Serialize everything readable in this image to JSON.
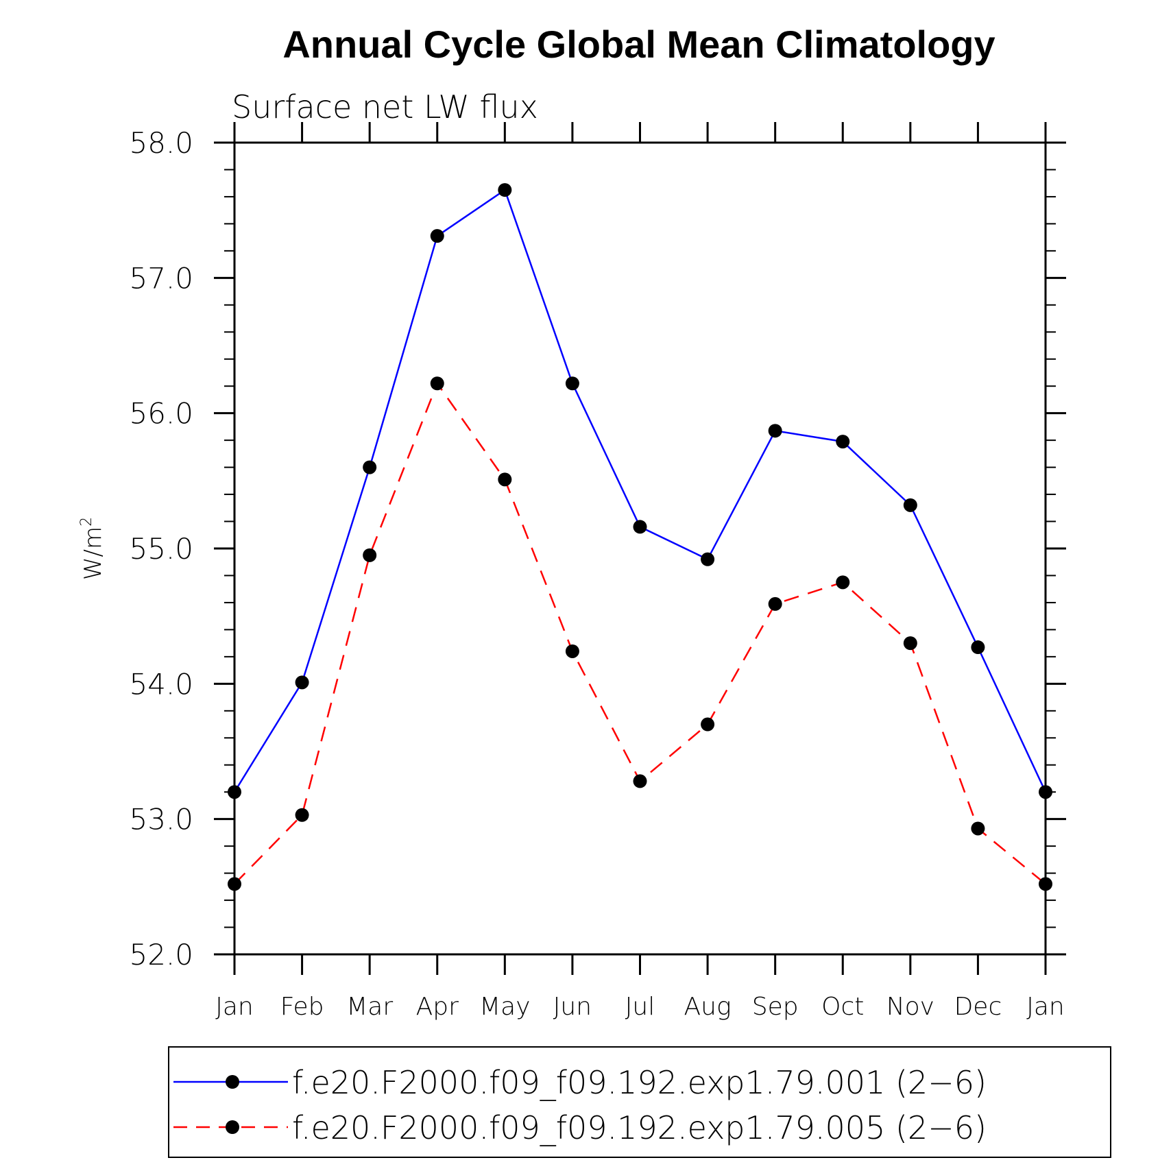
{
  "chart_data": {
    "type": "line",
    "title": "Annual Cycle Global Mean Climatology",
    "subtitle": "Surface net LW flux",
    "ylabel": "W/m",
    "ylabel_superscript": "2",
    "xlabel": "",
    "categories": [
      "Jan",
      "Feb",
      "Mar",
      "Apr",
      "May",
      "Jun",
      "Jul",
      "Aug",
      "Sep",
      "Oct",
      "Nov",
      "Dec",
      "Jan"
    ],
    "ylim": [
      52.0,
      58.0
    ],
    "yticks": [
      "52.0",
      "53.0",
      "54.0",
      "55.0",
      "56.0",
      "57.0",
      "58.0"
    ],
    "grid": false,
    "legend_position": "bottom",
    "series": [
      {
        "name": "f.e20.F2000.f09_f09.192.exp1.79.001 (2−6)",
        "color": "#0000ff",
        "dash": "solid",
        "marker": "filled-circle",
        "values": [
          53.2,
          54.01,
          55.6,
          57.31,
          57.65,
          56.22,
          55.16,
          54.92,
          55.87,
          55.79,
          55.32,
          54.27,
          53.2
        ]
      },
      {
        "name": "f.e20.F2000.f09_f09.192.exp1.79.005 (2−6)",
        "color": "#ff0000",
        "dash": "dashed",
        "marker": "filled-circle",
        "values": [
          52.52,
          53.03,
          54.95,
          56.22,
          55.51,
          54.24,
          53.28,
          53.7,
          54.59,
          54.75,
          54.3,
          52.93,
          52.52
        ]
      }
    ]
  }
}
